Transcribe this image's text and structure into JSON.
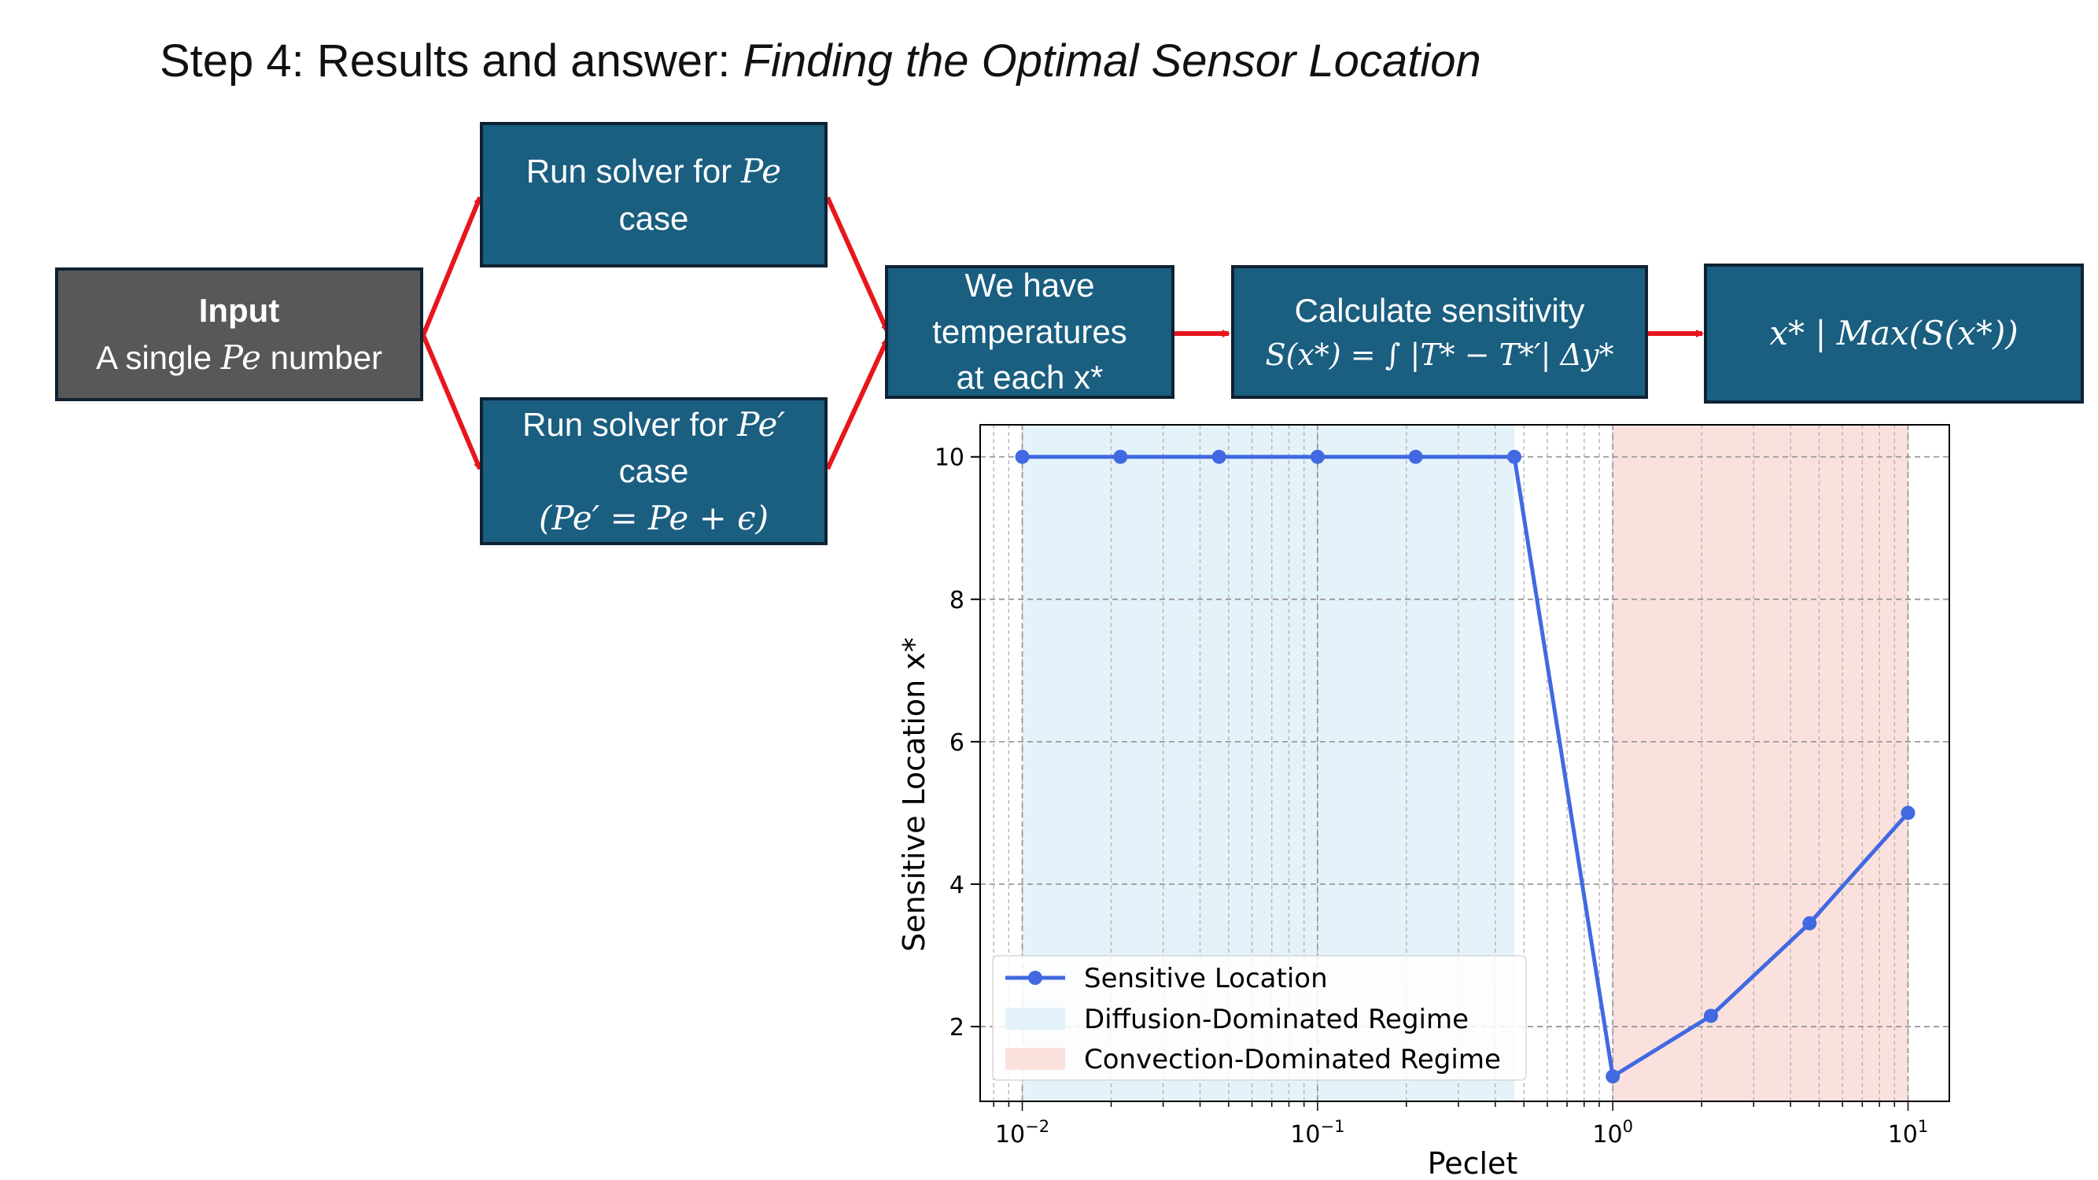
{
  "title": {
    "prefix": "Step 4: Results and answer: ",
    "italic": "Finding the Optimal Sensor Location"
  },
  "boxes": {
    "input": {
      "heading": "Input",
      "pre": "A single ",
      "math": "Pe",
      "post": " number"
    },
    "run1": {
      "line1_pre": "Run solver for ",
      "line1_math": "Pe",
      "line2": "case"
    },
    "run2": {
      "line1_pre": "Run solver for ",
      "line1_math": "Pe′",
      "line2": "case",
      "line3": "(Pe′ = Pe + ϵ)"
    },
    "temps": {
      "line1": "We have",
      "line2": "temperatures",
      "line3": "at each x*"
    },
    "sens": {
      "line1": "Calculate sensitivity",
      "formula": "S(x*) = ∫ |T* − T*′| Δy*"
    },
    "max": {
      "formula": "x* | Max(S(x*))"
    }
  },
  "colors": {
    "box_fill": "#1a5e80",
    "input_fill": "#585858",
    "arrow": "#e8161b",
    "series": "#4169e1",
    "diffusion": "#e4f2fa",
    "convection": "#fbe1dd"
  },
  "chart_data": {
    "type": "line",
    "xlabel": "Peclet",
    "ylabel": "Sensitive Location x*",
    "xscale": "log",
    "xlim": [
      0.0072,
      13.8
    ],
    "ylim": [
      0.95,
      10.45
    ],
    "xticks": [
      {
        "value": 0.01,
        "base": "10",
        "exp": "−2"
      },
      {
        "value": 0.1,
        "base": "10",
        "exp": "−1"
      },
      {
        "value": 1,
        "base": "10",
        "exp": "0"
      },
      {
        "value": 10,
        "base": "10",
        "exp": "1"
      }
    ],
    "yticks": [
      2,
      4,
      6,
      8,
      10
    ],
    "grid": true,
    "series": [
      {
        "name": "Sensitive Location",
        "x": [
          0.01,
          0.0215,
          0.0464,
          0.1,
          0.215,
          0.464,
          1.0,
          2.15,
          4.64,
          10.0
        ],
        "y": [
          10.0,
          10.0,
          10.0,
          10.0,
          10.0,
          10.0,
          1.3,
          2.15,
          3.45,
          5.0
        ]
      }
    ],
    "regions": [
      {
        "name": "Diffusion-Dominated Regime",
        "from": 0.01,
        "to": 0.464,
        "color": "#e4f2fa"
      },
      {
        "name": "Convection-Dominated Regime",
        "from": 1.0,
        "to": 10.0,
        "color": "#fbe1dd"
      }
    ],
    "legend": "lower-left"
  }
}
